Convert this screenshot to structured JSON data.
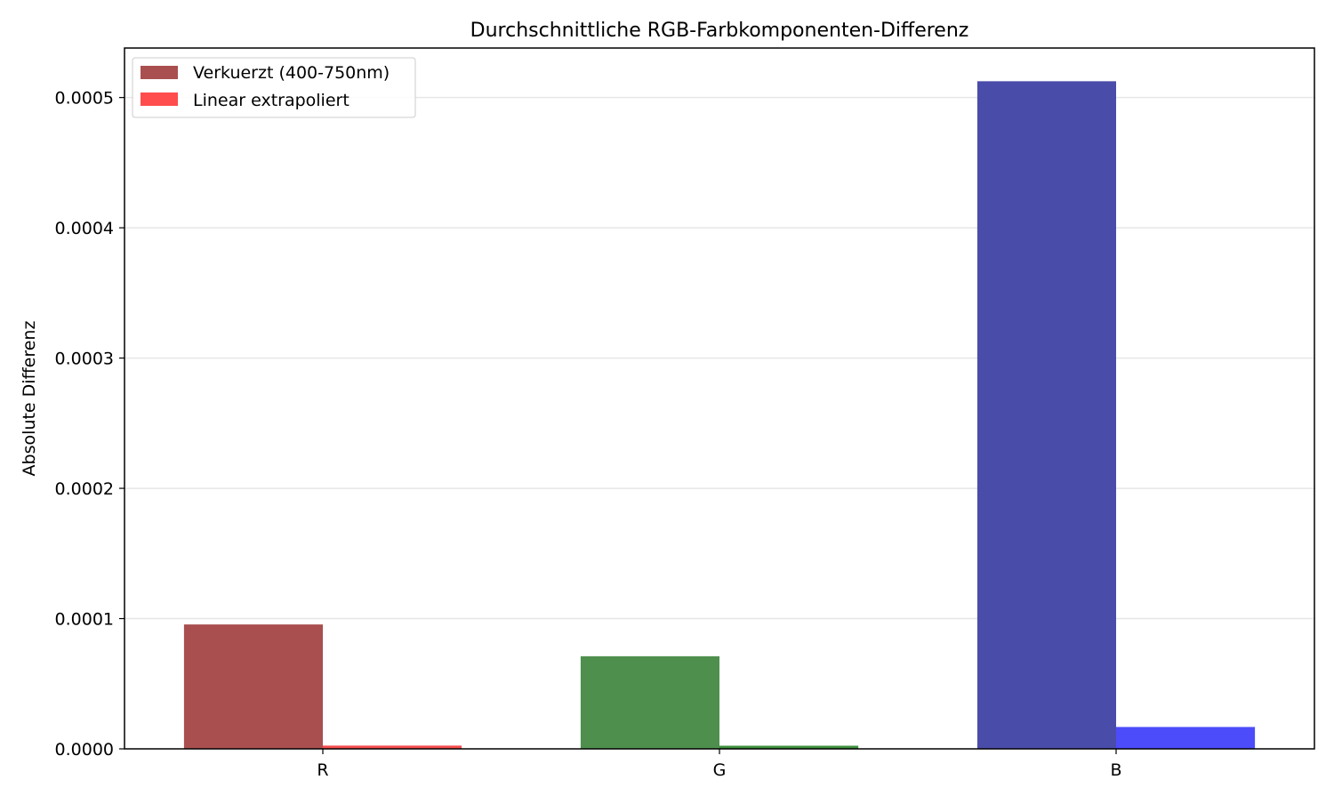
{
  "chart_data": {
    "type": "bar",
    "title": "Durchschnittliche RGB-Farbkomponenten-Differenz",
    "xlabel": "",
    "ylabel": "Absolute Differenz",
    "categories": [
      "R",
      "G",
      "B"
    ],
    "ylim": [
      0,
      0.000538
    ],
    "yticks": [
      0.0,
      0.0001,
      0.0002,
      0.0003,
      0.0004,
      0.0005
    ],
    "ytick_labels": [
      "0.0000",
      "0.0001",
      "0.0002",
      "0.0003",
      "0.0004",
      "0.0005"
    ],
    "grid": "y-axis horizontal lines",
    "legend_position": "top-left",
    "series": [
      {
        "name": "Verkuerzt (400-750nm)",
        "values": [
          9.55e-05,
          7.11e-05,
          0.0005125
        ],
        "colors": [
          "#a94f4f",
          "#4e8f4e",
          "#4a4caa"
        ],
        "legend_color": "#a94f4f"
      },
      {
        "name": "Linear extrapoliert",
        "values": [
          2.5e-06,
          2.4e-06,
          1.68e-05
        ],
        "colors": [
          "#f54c4c",
          "#3d8f3d",
          "#4c4cfa"
        ],
        "legend_color": "#ff4c4c"
      }
    ]
  }
}
